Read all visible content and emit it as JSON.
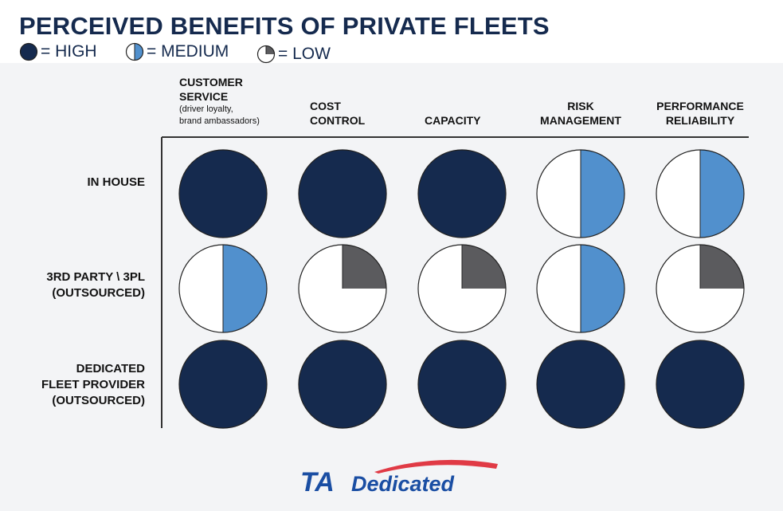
{
  "colors": {
    "high": "#152a4e",
    "medium": "#5190cd",
    "low": "#5b5b5e",
    "empty": "#ffffff",
    "title": "#152a4e",
    "logo_blue": "#1a4ea3",
    "logo_red": "#e03a45"
  },
  "chart_data": {
    "type": "table",
    "title": "PERCEIVED BENEFITS OF PRIVATE FLEETS",
    "legend": [
      {
        "level": "high",
        "label": "= HIGH",
        "fill": 1
      },
      {
        "level": "medium",
        "label": "= MEDIUM",
        "fill": 0.5
      },
      {
        "level": "low",
        "label": "= LOW",
        "fill": 0.25
      }
    ],
    "columns": [
      {
        "label": [
          "CUSTOMER",
          "SERVICE"
        ],
        "note": [
          "(driver loyalty,",
          "brand ambassadors)"
        ]
      },
      {
        "label": [
          "COST",
          "CONTROL"
        ]
      },
      {
        "label": [
          "CAPACITY"
        ]
      },
      {
        "label": [
          "RISK",
          "MANAGEMENT"
        ]
      },
      {
        "label": [
          "PERFORMANCE",
          "RELIABILITY"
        ]
      }
    ],
    "rows": [
      {
        "label": [
          "IN HOUSE"
        ],
        "values": [
          "high",
          "high",
          "high",
          "medium",
          "medium"
        ]
      },
      {
        "label": [
          "3RD PARTY \\ 3PL",
          "(OUTSOURCED)"
        ],
        "values": [
          "medium",
          "low",
          "low",
          "medium",
          "low"
        ]
      },
      {
        "label": [
          "DEDICATED",
          "FLEET PROVIDER",
          "(OUTSOURCED)"
        ],
        "values": [
          "high",
          "high",
          "high",
          "high",
          "high"
        ]
      }
    ]
  },
  "logo": {
    "text_ta": "TA",
    "text_dedicated": "Dedicated"
  }
}
